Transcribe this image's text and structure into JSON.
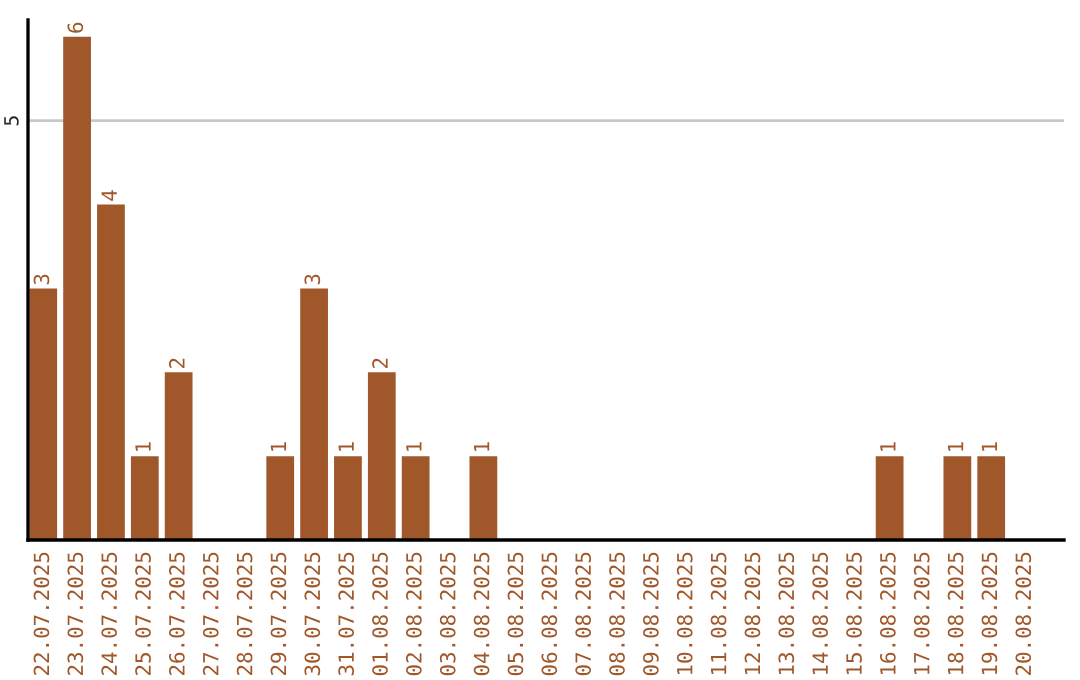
{
  "chart_data": {
    "type": "bar",
    "categories": [
      "22.07.2025",
      "23.07.2025",
      "24.07.2025",
      "25.07.2025",
      "26.07.2025",
      "27.07.2025",
      "28.07.2025",
      "29.07.2025",
      "30.07.2025",
      "31.07.2025",
      "01.08.2025",
      "02.08.2025",
      "03.08.2025",
      "04.08.2025",
      "05.08.2025",
      "06.08.2025",
      "07.08.2025",
      "08.08.2025",
      "09.08.2025",
      "10.08.2025",
      "11.08.2025",
      "12.08.2025",
      "13.08.2025",
      "14.08.2025",
      "15.08.2025",
      "16.08.2025",
      "17.08.2025",
      "18.08.2025",
      "19.08.2025",
      "20.08.2025"
    ],
    "values": [
      3,
      6,
      4,
      1,
      2,
      0,
      0,
      1,
      3,
      1,
      2,
      1,
      0,
      1,
      0,
      0,
      0,
      0,
      0,
      0,
      0,
      0,
      0,
      0,
      0,
      1,
      0,
      1,
      1,
      0
    ],
    "value_labels": [
      "3",
      "6",
      "4",
      "1",
      "2",
      null,
      null,
      "1",
      "3",
      "1",
      "2",
      "1",
      null,
      "1",
      null,
      null,
      null,
      null,
      null,
      null,
      null,
      null,
      null,
      null,
      null,
      "1",
      null,
      "1",
      "1",
      null
    ],
    "color": "#a0572a",
    "ylim": [
      0,
      6.2
    ],
    "yticks": [
      5
    ],
    "grid": "y",
    "legend": false
  }
}
